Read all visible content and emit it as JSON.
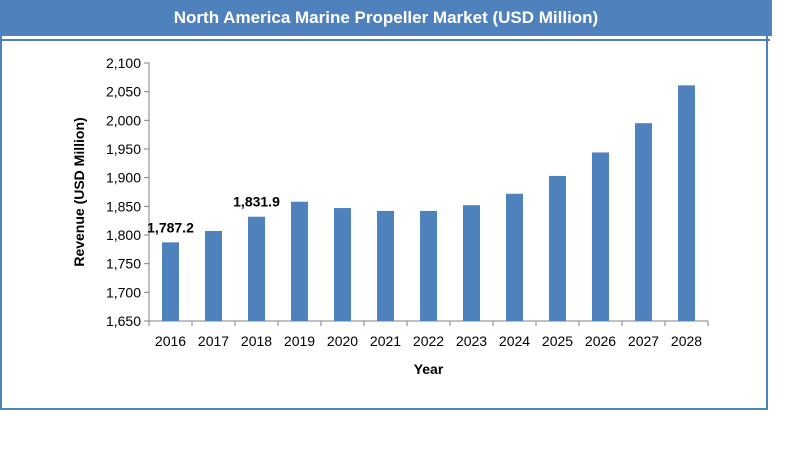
{
  "chart_data": {
    "type": "bar",
    "title": "North America Marine Propeller Market (USD Million)",
    "xlabel": "Year",
    "ylabel": "Revenue (USD Million)",
    "categories": [
      "2016",
      "2017",
      "2018",
      "2019",
      "2020",
      "2021",
      "2022",
      "2023",
      "2024",
      "2025",
      "2026",
      "2027",
      "2028"
    ],
    "values": [
      1787.2,
      1807,
      1831.9,
      1858,
      1847,
      1842,
      1842,
      1852,
      1872,
      1903,
      1944,
      1995,
      2061
    ],
    "ylim": [
      1650,
      2100
    ],
    "yticks": [
      1650,
      1700,
      1750,
      1800,
      1850,
      1900,
      1950,
      2000,
      2050,
      2100
    ],
    "ytick_labels": [
      "1,650",
      "1,700",
      "1,750",
      "1,800",
      "1,850",
      "1,900",
      "1,950",
      "2,000",
      "2,050",
      "2,100"
    ],
    "data_labels": [
      {
        "index": 0,
        "text": "1,787.2"
      },
      {
        "index": 2,
        "text": "1,831.9"
      }
    ],
    "bar_color": "#4f81bd",
    "grid": false,
    "legend": "none"
  }
}
